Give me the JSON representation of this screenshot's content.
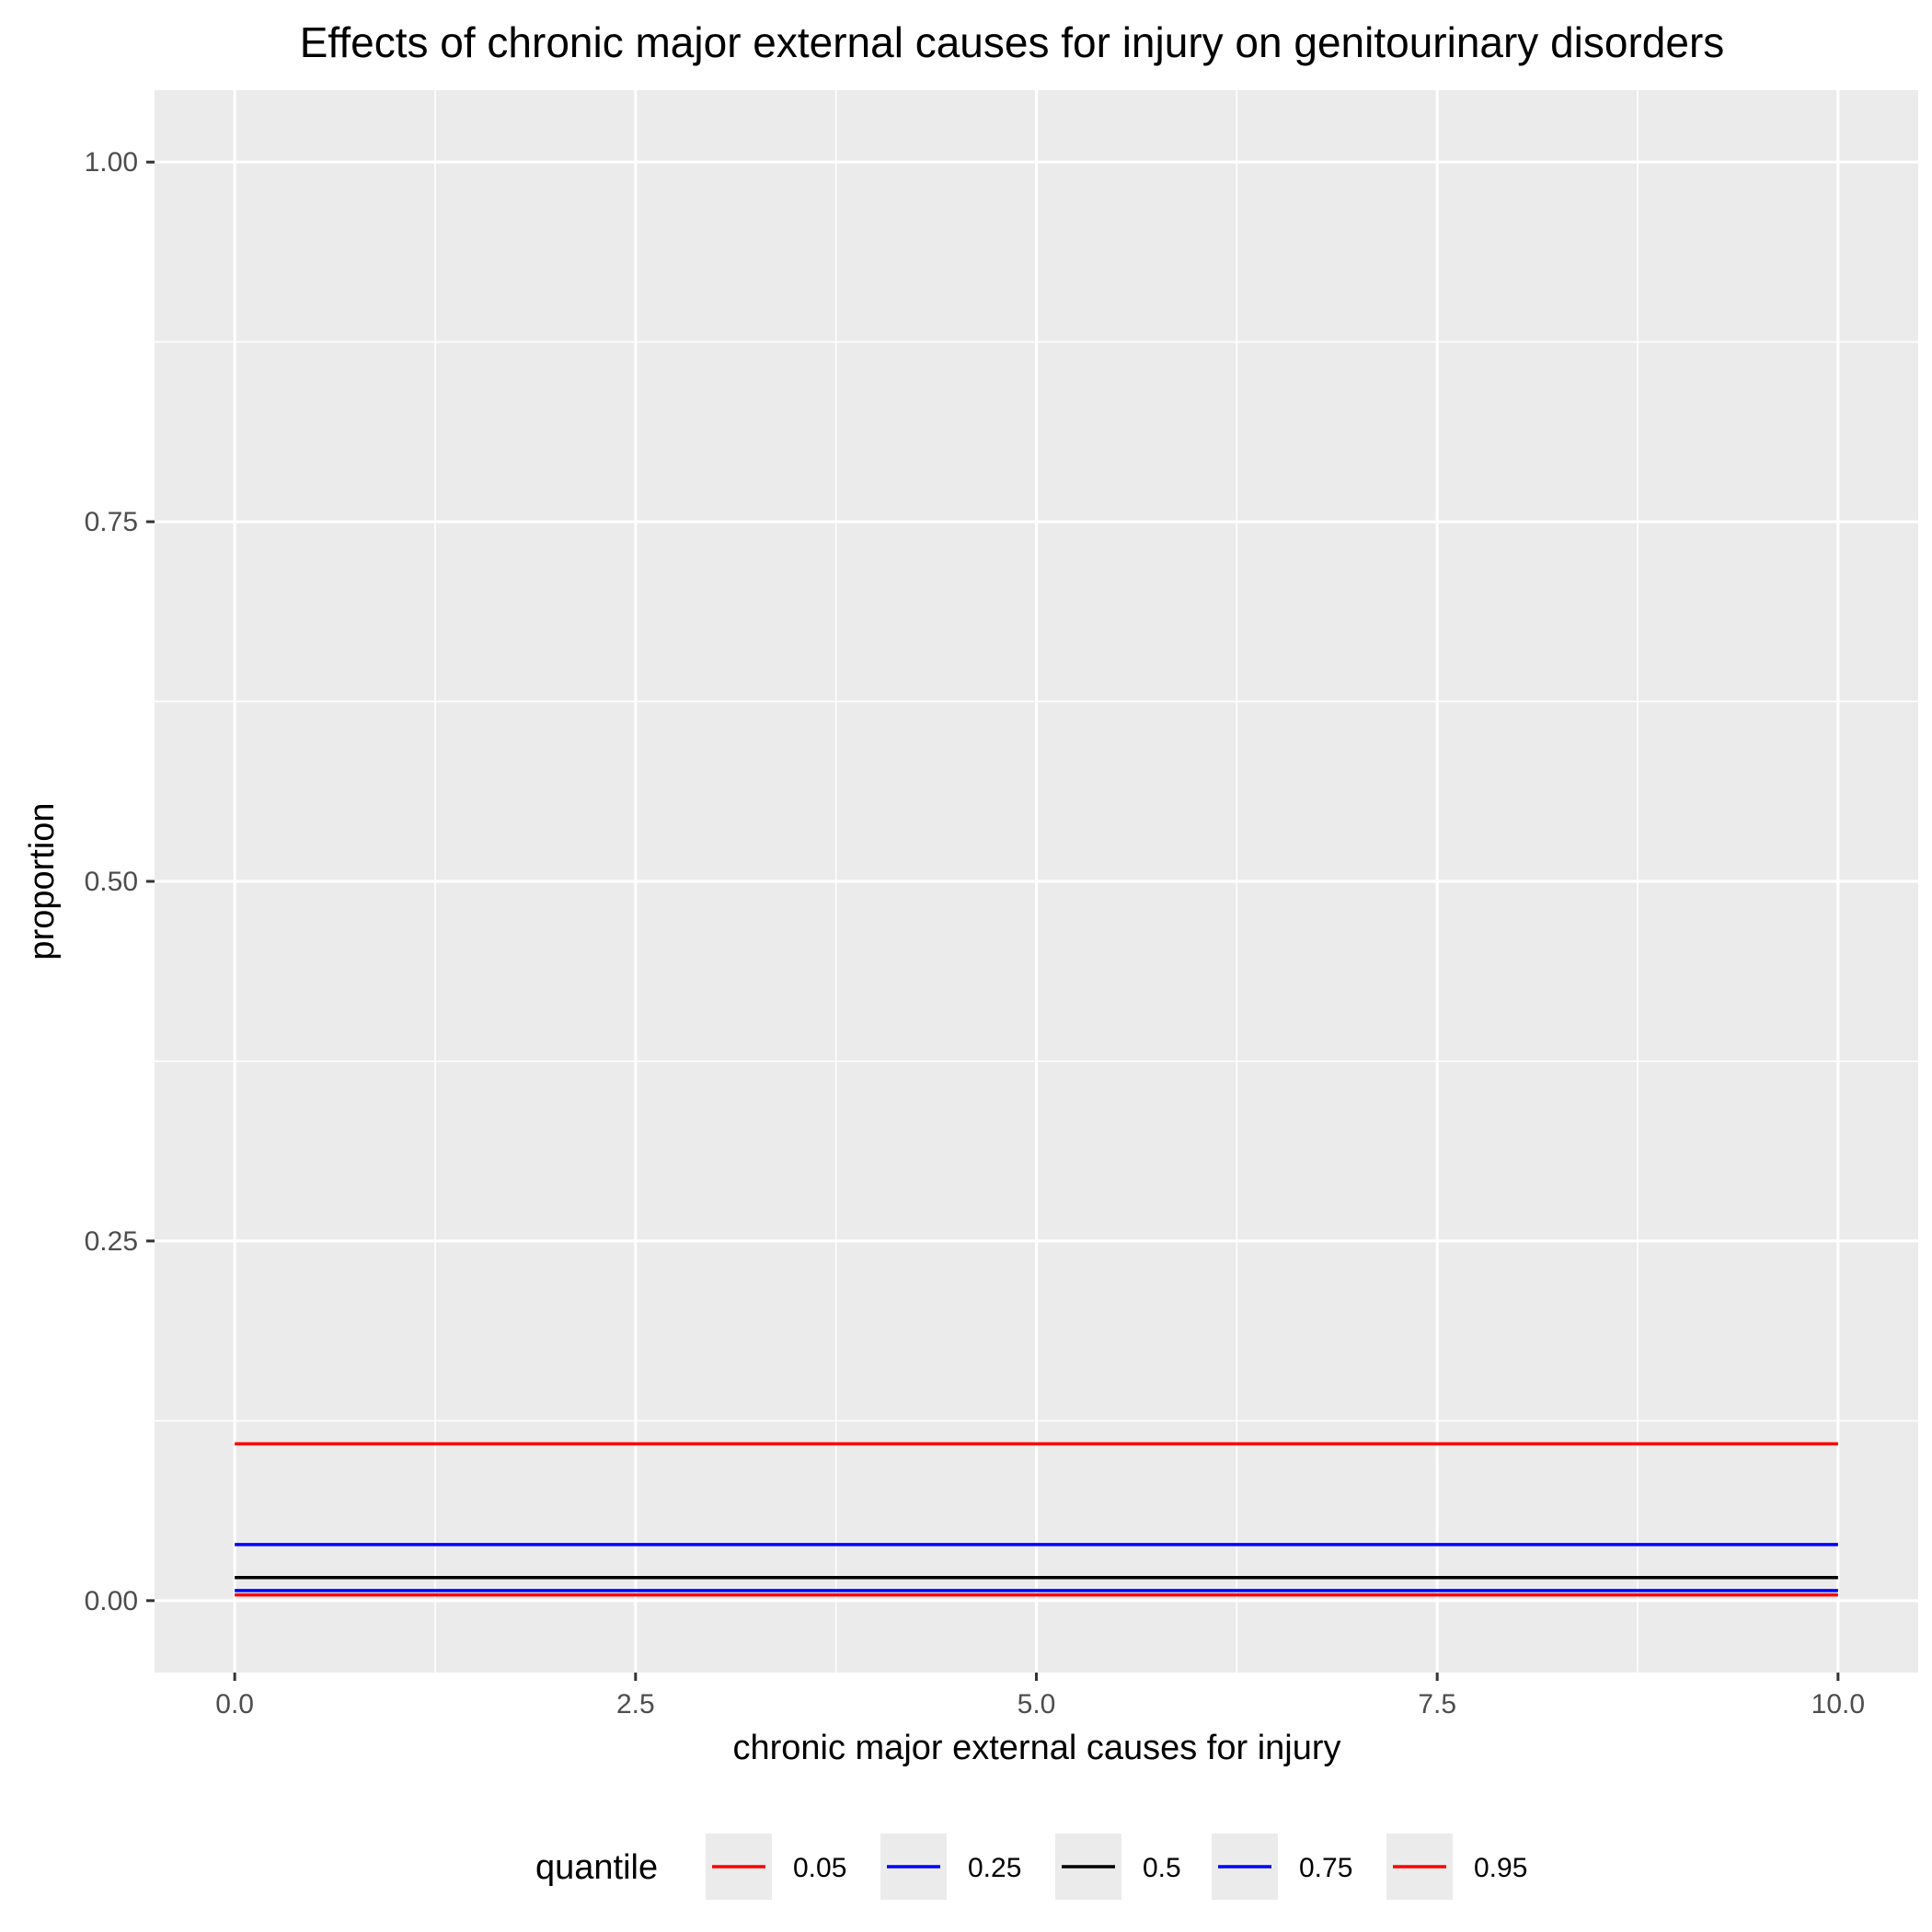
{
  "chart_data": {
    "type": "line",
    "title": "Effects of chronic major external causes for injury on genitourinary disorders",
    "xlabel": "chronic major external causes for injury",
    "ylabel": "proportion",
    "xlim": [
      -0.5,
      10.5
    ],
    "ylim": [
      -0.05,
      1.05
    ],
    "x_ticks": [
      0,
      2.5,
      5,
      7.5,
      10
    ],
    "x_tick_labels": [
      "0.0",
      "2.5",
      "5.0",
      "7.5",
      "10.0"
    ],
    "y_ticks": [
      0,
      0.25,
      0.5,
      0.75,
      1
    ],
    "y_tick_labels": [
      "0.00",
      "0.25",
      "0.50",
      "0.75",
      "1.00"
    ],
    "grid": true,
    "legend": {
      "title": "quantile",
      "position": "bottom"
    },
    "x": [
      0,
      10
    ],
    "series": [
      {
        "name": "0.05",
        "color": "#ff0000",
        "values": [
          0.004,
          0.004
        ]
      },
      {
        "name": "0.25",
        "color": "#0000ff",
        "values": [
          0.007,
          0.007
        ]
      },
      {
        "name": "0.5",
        "color": "#000000",
        "values": [
          0.016,
          0.016
        ]
      },
      {
        "name": "0.75",
        "color": "#0000ff",
        "values": [
          0.039,
          0.039
        ]
      },
      {
        "name": "0.95",
        "color": "#ff0000",
        "values": [
          0.109,
          0.109
        ]
      }
    ]
  }
}
